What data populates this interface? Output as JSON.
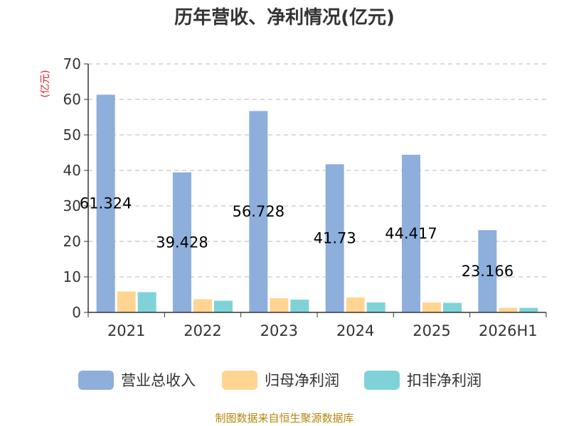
{
  "chart_data": {
    "type": "bar",
    "title": "历年营收、净利情况(亿元)",
    "unit_label": "(亿元)",
    "categories": [
      "2021",
      "2022",
      "2023",
      "2024",
      "2025",
      "2026H1"
    ],
    "ylim": [
      0,
      70
    ],
    "yticks": [
      0,
      10,
      20,
      30,
      40,
      50,
      60,
      70
    ],
    "grid": true,
    "legend_position": "bottom",
    "series": [
      {
        "name": "营业总收入",
        "color": "#8eaedc",
        "values": [
          61.324,
          39.428,
          56.728,
          41.73,
          44.417,
          23.166
        ],
        "labels": [
          "61.324",
          "39.428",
          "56.728",
          "41.73",
          "44.417",
          "23.166"
        ]
      },
      {
        "name": "归母净利润",
        "color": "#ffd591",
        "values": [
          5.9,
          3.7,
          4.0,
          4.2,
          2.8,
          1.3
        ]
      },
      {
        "name": "扣非净利润",
        "color": "#7fd3d8",
        "values": [
          5.7,
          3.3,
          3.6,
          2.8,
          2.7,
          1.3
        ]
      }
    ],
    "source": "制图数据来自恒生聚源数据库"
  }
}
